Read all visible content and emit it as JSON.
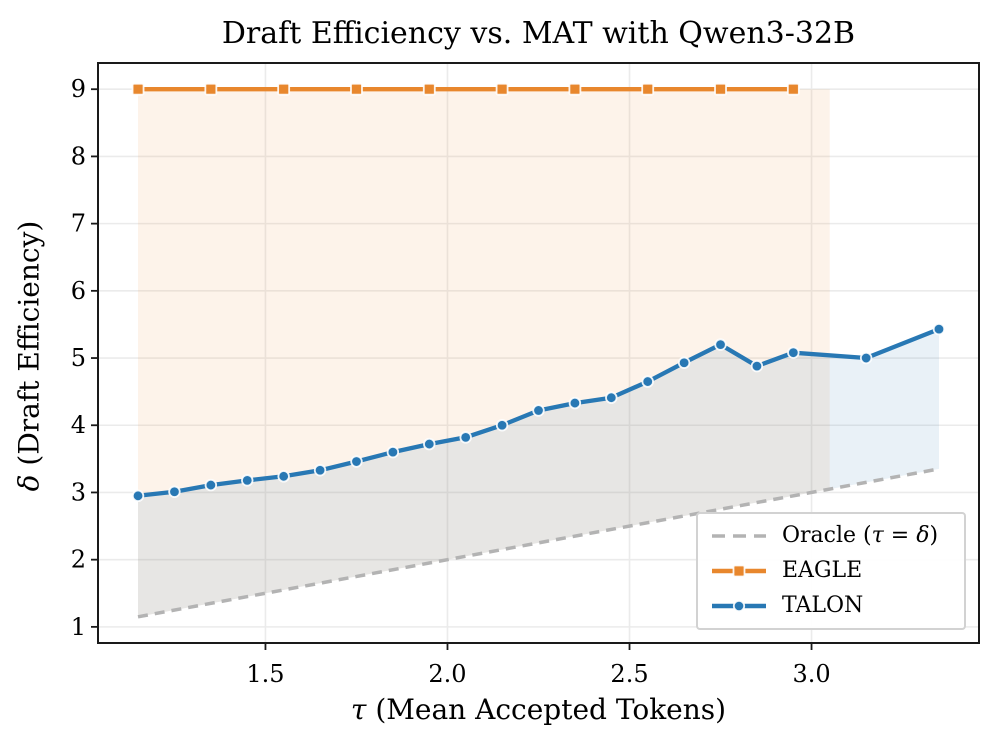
{
  "title": "Draft Efficiency vs. MAT with Qwen3-32B",
  "chart_data": {
    "type": "line",
    "title": "Draft Efficiency vs. MAT with Qwen3-32B",
    "xlabel_symbol": "τ",
    "xlabel_rest": " (Mean Accepted Tokens)",
    "ylabel_symbol": "δ",
    "ylabel_rest": " (Draft Efficiency)",
    "axes": {
      "xlim": [
        1.04,
        3.46
      ],
      "ylim": [
        0.76,
        9.39
      ],
      "x_ticks": [
        1.5,
        2.0,
        2.5,
        3.0
      ],
      "x_tick_labels": [
        "1.5",
        "2.0",
        "2.5",
        "3.0"
      ],
      "y_ticks": [
        1,
        2,
        3,
        4,
        5,
        6,
        7,
        8,
        9
      ],
      "y_tick_labels": [
        "1",
        "2",
        "3",
        "4",
        "5",
        "6",
        "7",
        "8",
        "9"
      ],
      "grid": true
    },
    "series": [
      {
        "key": "oracle",
        "name": "Oracle (τ = δ)",
        "type": "dashed",
        "color": "#b3b3b3",
        "marker": "none",
        "x": [
          1.15,
          3.35
        ],
        "y": [
          1.15,
          3.35
        ]
      },
      {
        "key": "eagle",
        "name": "EAGLE",
        "type": "solid",
        "color": "#e8872d",
        "marker": "square",
        "x": [
          1.15,
          1.35,
          1.55,
          1.75,
          1.95,
          2.15,
          2.35,
          2.55,
          2.75,
          2.95
        ],
        "y": [
          9,
          9,
          9,
          9,
          9,
          9,
          9,
          9,
          9,
          9
        ]
      },
      {
        "key": "talon",
        "name": "TALON",
        "type": "solid",
        "color": "#2878b4",
        "marker": "circle",
        "x": [
          1.15,
          1.25,
          1.35,
          1.45,
          1.55,
          1.65,
          1.75,
          1.85,
          1.95,
          2.05,
          2.15,
          2.25,
          2.35,
          2.45,
          2.55,
          2.65,
          2.75,
          2.85,
          2.95,
          3.15,
          3.35
        ],
        "y": [
          2.95,
          3.01,
          3.11,
          3.18,
          3.24,
          3.33,
          3.46,
          3.6,
          3.72,
          3.82,
          4.0,
          4.22,
          4.33,
          4.41,
          4.65,
          4.93,
          5.2,
          4.88,
          5.08,
          5.0,
          5.43
        ]
      }
    ],
    "fills": [
      {
        "key": "eagle-region",
        "color": "rgba(232,135,45,0.10)",
        "x": [
          1.15,
          3.05,
          3.05,
          1.15
        ],
        "y": [
          9,
          9,
          3.05,
          1.15
        ]
      },
      {
        "key": "talon-region",
        "color": "rgba(40,120,180,0.10)",
        "x": [
          1.15,
          1.25,
          1.35,
          1.45,
          1.55,
          1.65,
          1.75,
          1.85,
          1.95,
          2.05,
          2.15,
          2.25,
          2.35,
          2.45,
          2.55,
          2.65,
          2.75,
          2.85,
          2.95,
          3.15,
          3.35,
          3.35,
          1.15
        ],
        "y": [
          2.95,
          3.01,
          3.11,
          3.18,
          3.24,
          3.33,
          3.46,
          3.6,
          3.72,
          3.82,
          4.0,
          4.22,
          4.33,
          4.41,
          4.65,
          4.93,
          5.2,
          4.88,
          5.08,
          5.0,
          5.43,
          3.35,
          1.15
        ]
      }
    ],
    "legend": {
      "position": "lower right",
      "items": [
        {
          "key": "oracle",
          "label_parts": [
            {
              "t": "Oracle ("
            },
            {
              "t": "τ",
              "italic": true
            },
            {
              "t": " = "
            },
            {
              "t": "δ",
              "italic": true
            },
            {
              "t": ")"
            }
          ]
        },
        {
          "key": "eagle",
          "label": "EAGLE"
        },
        {
          "key": "talon",
          "label": "TALON"
        }
      ]
    }
  }
}
